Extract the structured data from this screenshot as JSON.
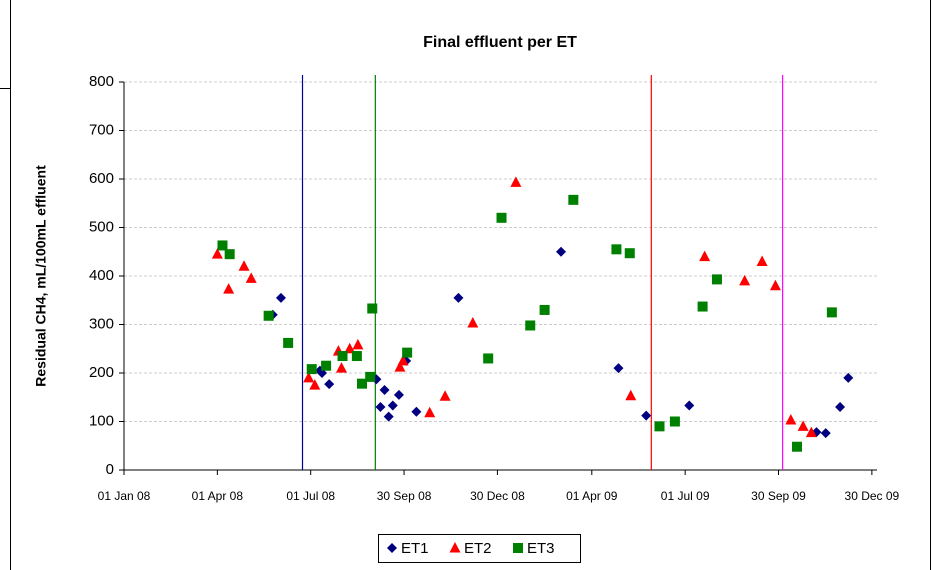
{
  "chart_data": {
    "type": "scatter",
    "title": "Final effluent per ET",
    "ylabel": "Residual CH4, mL/100mL effluent",
    "xlim": [
      "2008-01-01",
      "2010-01-04"
    ],
    "xticks": [
      {
        "value": "2008-01-01",
        "label": "01 Jan 08"
      },
      {
        "value": "2008-04-01",
        "label": "01 Apr 08"
      },
      {
        "value": "2008-07-01",
        "label": "01 Jul 08"
      },
      {
        "value": "2008-09-30",
        "label": "30 Sep 08"
      },
      {
        "value": "2008-12-30",
        "label": "30 Dec 08"
      },
      {
        "value": "2009-04-01",
        "label": "01 Apr 09"
      },
      {
        "value": "2009-07-01",
        "label": "01 Jul 09"
      },
      {
        "value": "2009-09-30",
        "label": "30 Sep 09"
      },
      {
        "value": "2009-12-30",
        "label": "30 Dec 09"
      }
    ],
    "ylim": [
      0,
      800
    ],
    "yticks": [
      0,
      100,
      200,
      300,
      400,
      500,
      600,
      700,
      800
    ],
    "grid": true,
    "legend": "bottom",
    "vlines": [
      {
        "x": "2008-06-23",
        "color": "#0000a0"
      },
      {
        "x": "2008-09-02",
        "color": "#008000"
      },
      {
        "x": "2009-05-29",
        "color": "#ff0000"
      },
      {
        "x": "2009-10-04",
        "color": "#ff00ff"
      }
    ],
    "series": [
      {
        "name": "ET1",
        "color": "#000080",
        "marker": "diamond",
        "x": [
          "2008-05-25",
          "2008-06-02",
          "2008-07-10",
          "2008-07-12",
          "2008-07-19",
          "2008-09-03",
          "2008-09-07",
          "2008-09-11",
          "2008-09-15",
          "2008-09-19",
          "2008-09-25",
          "2008-10-02",
          "2008-10-12",
          "2008-11-22",
          "2009-03-02",
          "2009-04-27",
          "2009-05-24",
          "2009-07-05",
          "2009-11-06",
          "2009-11-15",
          "2009-11-29",
          "2009-12-07"
        ],
        "values": [
          320,
          355,
          205,
          200,
          177,
          187,
          130,
          165,
          110,
          133,
          155,
          225,
          120,
          355,
          450,
          210,
          112,
          133,
          78,
          76,
          130,
          190
        ]
      },
      {
        "name": "ET2",
        "color": "#ff0000",
        "marker": "triangle",
        "x": [
          "2008-04-01",
          "2008-04-12",
          "2008-04-27",
          "2008-05-04",
          "2008-06-29",
          "2008-07-05",
          "2008-07-28",
          "2008-07-31",
          "2008-08-08",
          "2008-08-16",
          "2008-09-26",
          "2008-09-29",
          "2008-10-25",
          "2008-11-09",
          "2008-12-06",
          "2009-01-17",
          "2009-05-09",
          "2009-07-20",
          "2009-08-28",
          "2009-09-14",
          "2009-09-27",
          "2009-10-12",
          "2009-10-24",
          "2009-11-01"
        ],
        "values": [
          445,
          373,
          420,
          395,
          190,
          175,
          245,
          210,
          250,
          258,
          212,
          225,
          118,
          152,
          303,
          593,
          153,
          440,
          390,
          430,
          380,
          103,
          90,
          77
        ]
      },
      {
        "name": "ET3",
        "color": "#008000",
        "marker": "square",
        "x": [
          "2008-04-06",
          "2008-04-13",
          "2008-05-21",
          "2008-06-09",
          "2008-07-02",
          "2008-07-16",
          "2008-08-01",
          "2008-08-15",
          "2008-08-20",
          "2008-08-28",
          "2008-08-30",
          "2008-10-03",
          "2008-12-21",
          "2009-01-03",
          "2009-01-31",
          "2009-02-14",
          "2009-03-14",
          "2009-04-25",
          "2009-05-08",
          "2009-06-06",
          "2009-06-21",
          "2009-07-18",
          "2009-08-01",
          "2009-10-18",
          "2009-11-21"
        ],
        "values": [
          463,
          445,
          318,
          262,
          208,
          215,
          235,
          235,
          178,
          192,
          333,
          242,
          230,
          520,
          298,
          330,
          557,
          455,
          447,
          90,
          100,
          337,
          393,
          48,
          325
        ]
      }
    ]
  }
}
